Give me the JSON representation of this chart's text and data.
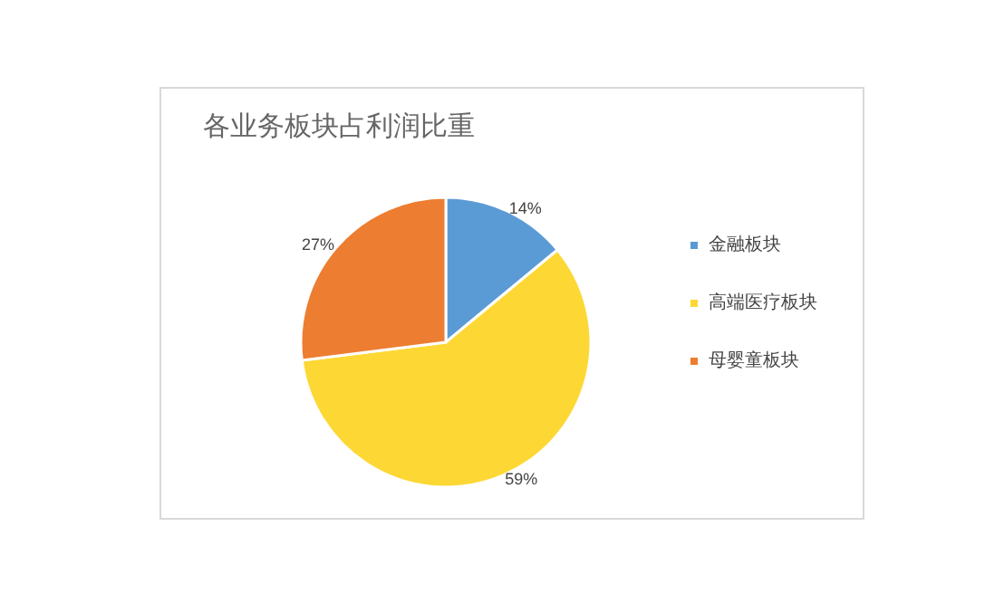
{
  "chart_data": {
    "type": "pie",
    "title": "各业务板块占利润比重",
    "categories": [
      "金融板块",
      "高端医疗板块",
      "母婴童板块"
    ],
    "values": [
      14,
      59,
      27
    ],
    "value_labels": [
      "14%",
      "59%",
      "27%"
    ],
    "colors": [
      "#5b9bd5",
      "#fdd835",
      "#ed7d31"
    ],
    "legend": "right"
  }
}
